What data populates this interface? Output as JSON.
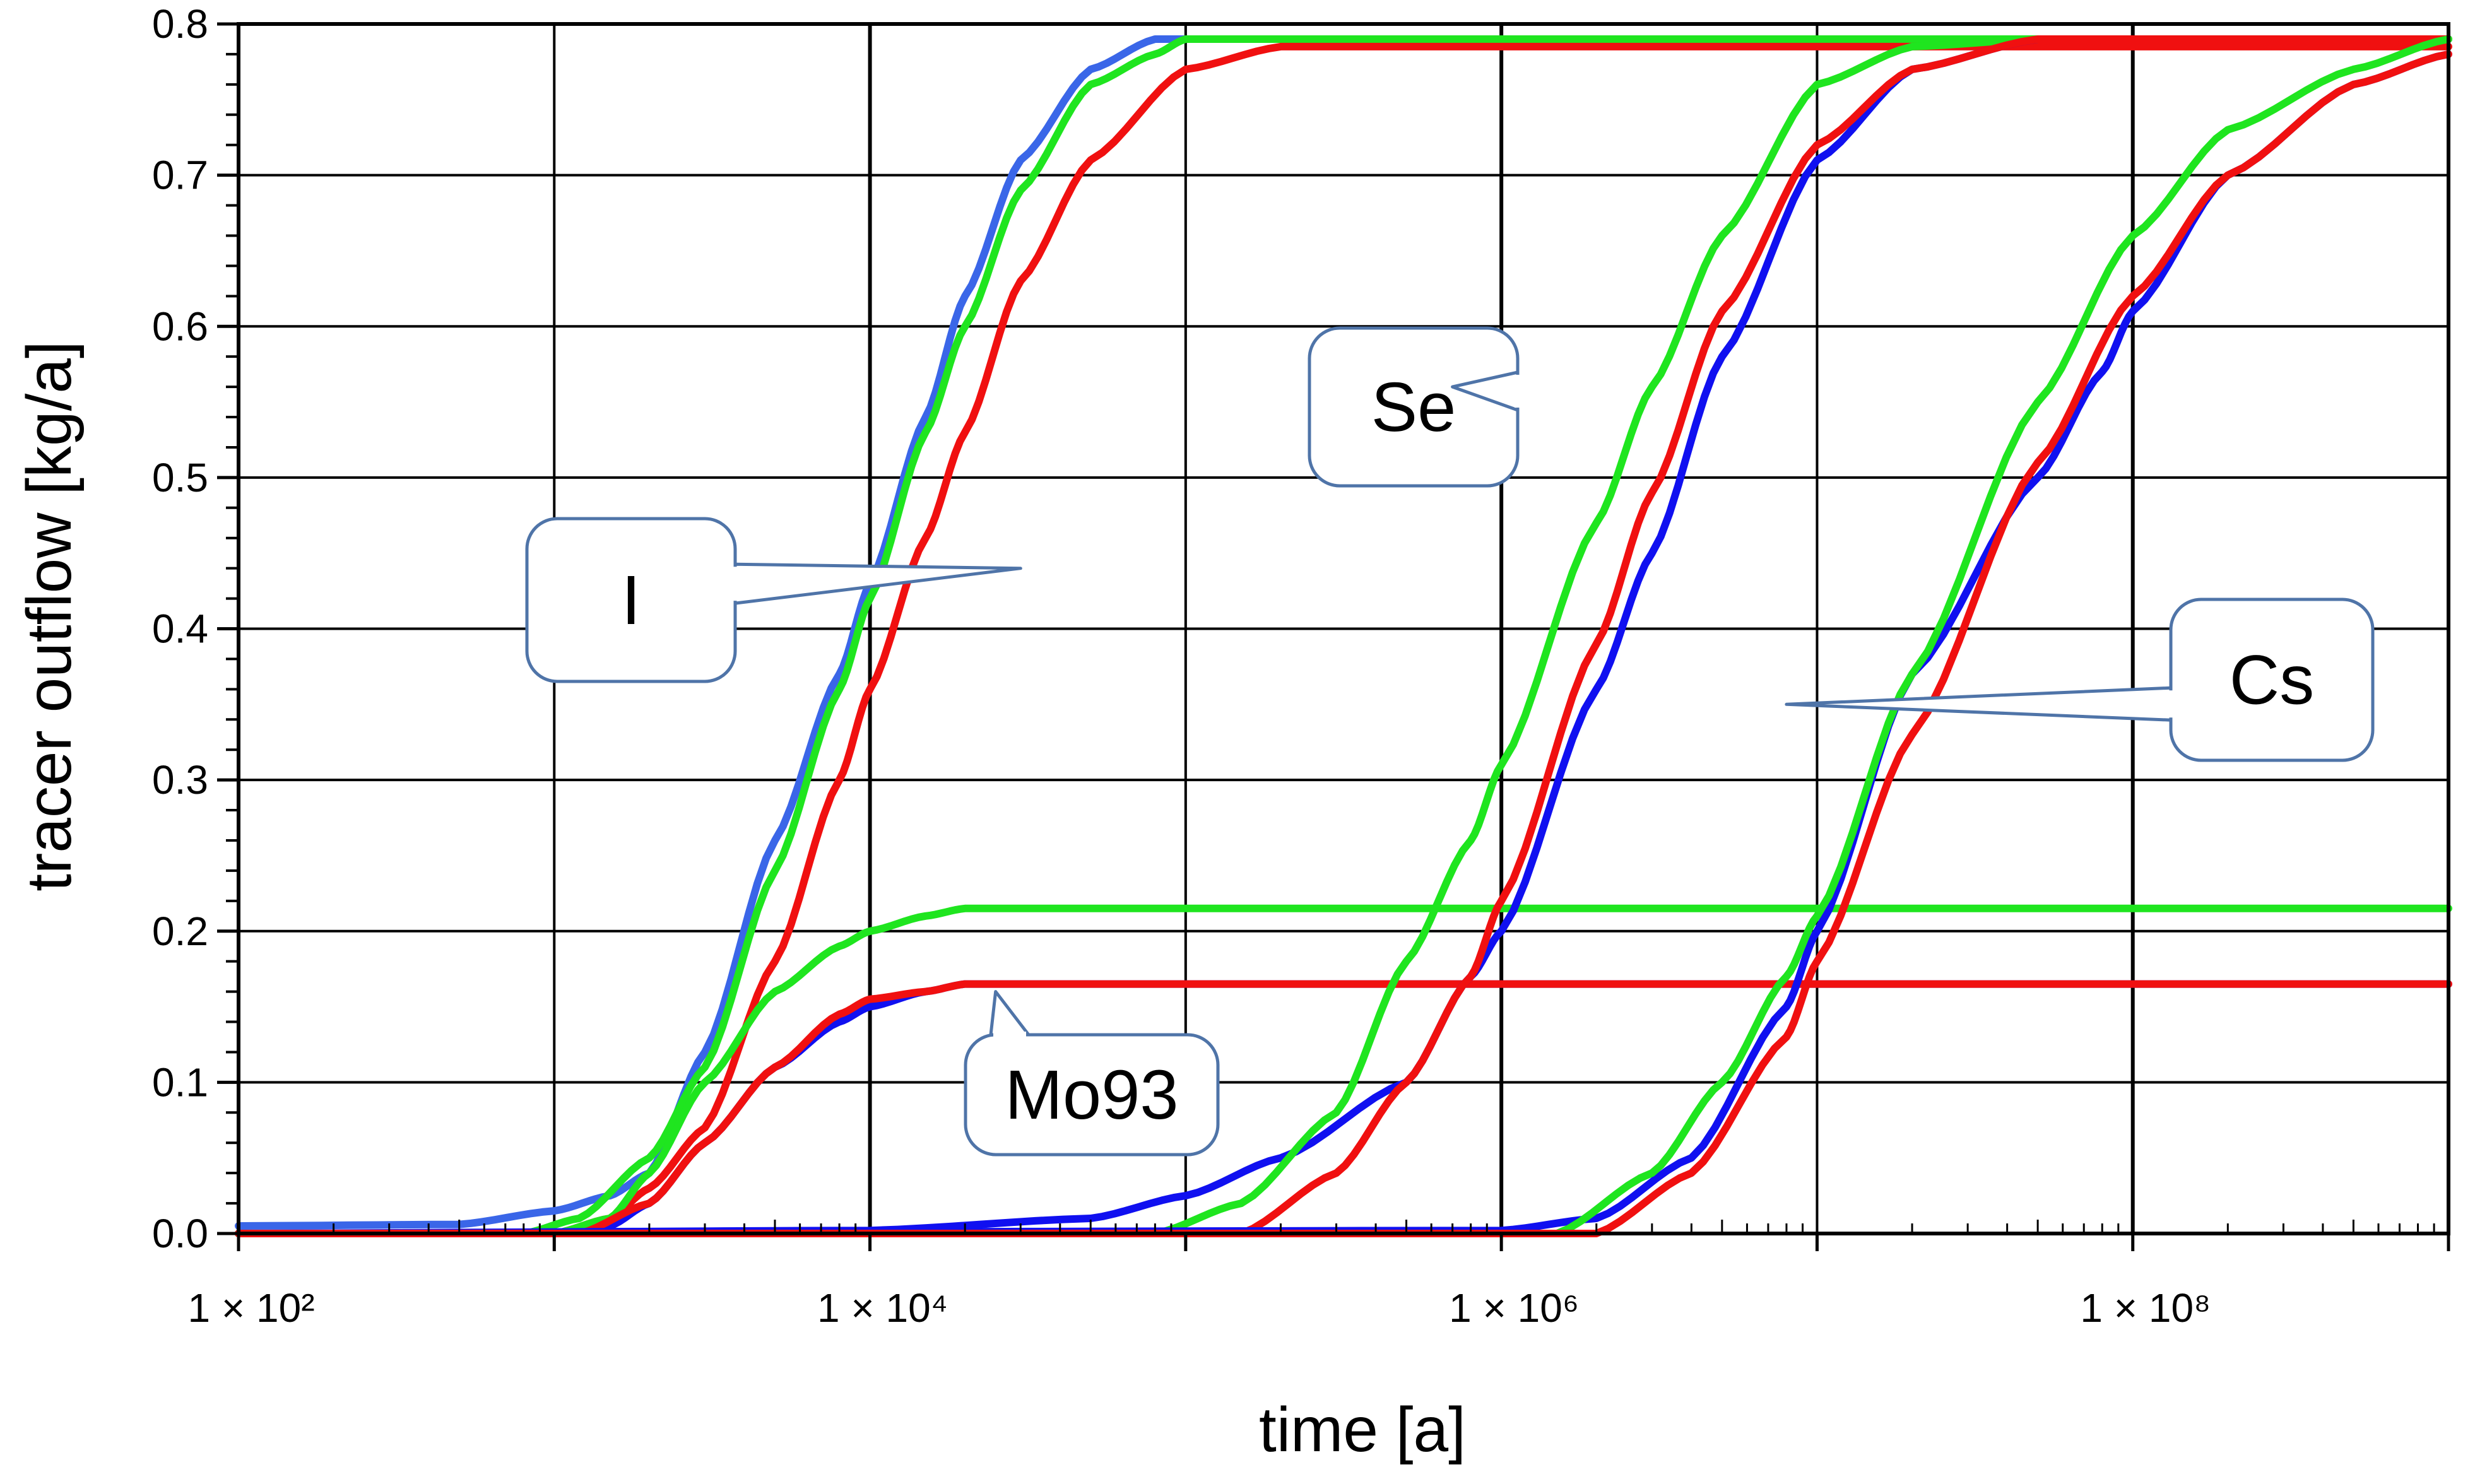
{
  "chart_data": {
    "type": "line",
    "x_scale": "log",
    "xlabel": "time [a]",
    "ylabel": "tracer outflow [kg/a]",
    "xlim": [
      100,
      1000000000
    ],
    "ylim": [
      0,
      0.8
    ],
    "grid": true,
    "y_ticks": [
      "0.0",
      "0.1",
      "0.2",
      "0.3",
      "0.4",
      "0.5",
      "0.6",
      "0.7",
      "0.8"
    ],
    "y_tick_values": [
      0,
      0.1,
      0.2,
      0.3,
      0.4,
      0.5,
      0.6,
      0.7,
      0.8
    ],
    "x_ticks": [
      {
        "value": 100,
        "label": "1 × 10²"
      },
      {
        "value": 10000,
        "label": "1 × 10⁴"
      },
      {
        "value": 1000000,
        "label": "1 × 10⁶"
      },
      {
        "value": 100000000,
        "label": "1 × 10⁸"
      }
    ],
    "series": [
      {
        "name": "I (blue)",
        "color": "#3a66e8",
        "plateau": 0.79,
        "x": [
          100,
          500,
          1000,
          1500,
          2000,
          3000,
          5000,
          8000,
          10000,
          15000,
          20000,
          30000,
          50000,
          80000,
          100000,
          200000,
          1000000,
          1000000000
        ],
        "values": [
          0.005,
          0.006,
          0.015,
          0.025,
          0.04,
          0.12,
          0.26,
          0.37,
          0.43,
          0.54,
          0.62,
          0.71,
          0.77,
          0.79,
          0.79,
          0.79,
          0.79,
          0.79
        ]
      },
      {
        "name": "I (green)",
        "color": "#1fe51f",
        "plateau": 0.79,
        "x": [
          100,
          800,
          1200,
          2000,
          3000,
          5000,
          8000,
          10000,
          15000,
          20000,
          30000,
          50000,
          80000,
          100000,
          200000,
          1000000,
          1000000000
        ],
        "values": [
          0.0,
          0.0,
          0.01,
          0.05,
          0.11,
          0.24,
          0.36,
          0.42,
          0.53,
          0.6,
          0.69,
          0.76,
          0.78,
          0.79,
          0.79,
          0.79,
          0.79
        ]
      },
      {
        "name": "I (red)",
        "color": "#f01010",
        "plateau": 0.785,
        "x": [
          100,
          1000,
          1500,
          2000,
          3000,
          5000,
          8000,
          10000,
          15000,
          20000,
          30000,
          50000,
          100000,
          200000,
          1000000,
          1000000000
        ],
        "values": [
          0.0,
          0.0,
          0.01,
          0.03,
          0.07,
          0.18,
          0.3,
          0.36,
          0.46,
          0.53,
          0.63,
          0.71,
          0.77,
          0.785,
          0.785,
          0.785
        ]
      },
      {
        "name": "Mo93 (blue)",
        "color": "#1010f0",
        "plateau": 0.165,
        "x": [
          100,
          1000,
          1500,
          2000,
          3000,
          5000,
          8000,
          10000,
          15000,
          20000,
          30000,
          1000000000
        ],
        "values": [
          0.0,
          0.0,
          0.005,
          0.02,
          0.06,
          0.11,
          0.14,
          0.15,
          0.16,
          0.165,
          0.165,
          0.165
        ]
      },
      {
        "name": "Mo93 (green)",
        "color": "#1fe51f",
        "plateau": 0.215,
        "x": [
          100,
          1000,
          1500,
          2000,
          3000,
          5000,
          8000,
          10000,
          15000,
          20000,
          1000000000
        ],
        "values": [
          0.0,
          0.0,
          0.01,
          0.04,
          0.1,
          0.16,
          0.19,
          0.2,
          0.21,
          0.215,
          0.215
        ]
      },
      {
        "name": "Mo93 (red)",
        "color": "#f01010",
        "plateau": 0.165,
        "x": [
          100,
          1200,
          2000,
          3000,
          5000,
          8000,
          10000,
          15000,
          20000,
          30000,
          1000000000
        ],
        "values": [
          0.0,
          0.0,
          0.02,
          0.06,
          0.11,
          0.145,
          0.155,
          0.16,
          0.165,
          0.165,
          0.165
        ]
      },
      {
        "name": "Se (blue)",
        "color": "#1010f0",
        "plateau": 0.79,
        "x": [
          100,
          10000,
          50000,
          100000,
          200000,
          500000,
          800000,
          1000000,
          2000000,
          3000000,
          5000000,
          10000000,
          20000000,
          50000000,
          1000000000
        ],
        "values": [
          0.0,
          0.002,
          0.01,
          0.025,
          0.05,
          0.1,
          0.17,
          0.2,
          0.36,
          0.45,
          0.58,
          0.71,
          0.77,
          0.79,
          0.79
        ]
      },
      {
        "name": "Se (green)",
        "color": "#1fe51f",
        "plateau": 0.79,
        "x": [
          100,
          80000,
          150000,
          300000,
          500000,
          800000,
          1000000,
          2000000,
          3000000,
          5000000,
          10000000,
          20000000,
          50000000,
          1000000000
        ],
        "values": [
          0.0,
          0.0,
          0.02,
          0.08,
          0.18,
          0.26,
          0.31,
          0.47,
          0.56,
          0.66,
          0.76,
          0.785,
          0.79,
          0.79
        ]
      },
      {
        "name": "Se (red)",
        "color": "#f01010",
        "plateau": 0.79,
        "x": [
          100,
          150000,
          300000,
          500000,
          800000,
          1000000,
          2000000,
          3000000,
          5000000,
          10000000,
          20000000,
          50000000,
          1000000000
        ],
        "values": [
          0.0,
          0.0,
          0.04,
          0.1,
          0.17,
          0.22,
          0.39,
          0.49,
          0.61,
          0.72,
          0.77,
          0.79,
          0.79
        ]
      },
      {
        "name": "Cs (blue)",
        "color": "#1010f0",
        "plateau": 0.785,
        "x": [
          100,
          1000000,
          2000000,
          4000000,
          8000000,
          10000000,
          20000000,
          50000000,
          80000000,
          100000000,
          200000000,
          500000000,
          1000000000
        ],
        "values": [
          0.0,
          0.002,
          0.01,
          0.05,
          0.15,
          0.2,
          0.37,
          0.5,
          0.57,
          0.61,
          0.7,
          0.76,
          0.78
        ]
      },
      {
        "name": "Cs (green)",
        "color": "#1fe51f",
        "plateau": 0.79,
        "x": [
          100,
          1500000,
          3000000,
          5000000,
          8000000,
          10000000,
          20000000,
          50000000,
          100000000,
          200000000,
          500000000,
          1000000000
        ],
        "values": [
          0.0,
          0.0,
          0.04,
          0.1,
          0.17,
          0.21,
          0.37,
          0.55,
          0.66,
          0.73,
          0.77,
          0.79
        ]
      },
      {
        "name": "Cs (red)",
        "color": "#f01010",
        "plateau": 0.785,
        "x": [
          100,
          2000000,
          4000000,
          8000000,
          10000000,
          20000000,
          50000000,
          100000000,
          200000000,
          500000000,
          1000000000
        ],
        "values": [
          0.0,
          0.0,
          0.04,
          0.13,
          0.18,
          0.33,
          0.51,
          0.62,
          0.7,
          0.76,
          0.78
        ]
      }
    ],
    "annotations": [
      {
        "label": "I",
        "target_x": 30000,
        "target_y": 0.44
      },
      {
        "label": "Se",
        "target_x": 700000,
        "target_y": 0.56
      },
      {
        "label": "Cs",
        "target_x": 8000000,
        "target_y": 0.35
      },
      {
        "label": "Mo93",
        "target_x": 25000,
        "target_y": 0.16
      }
    ]
  }
}
